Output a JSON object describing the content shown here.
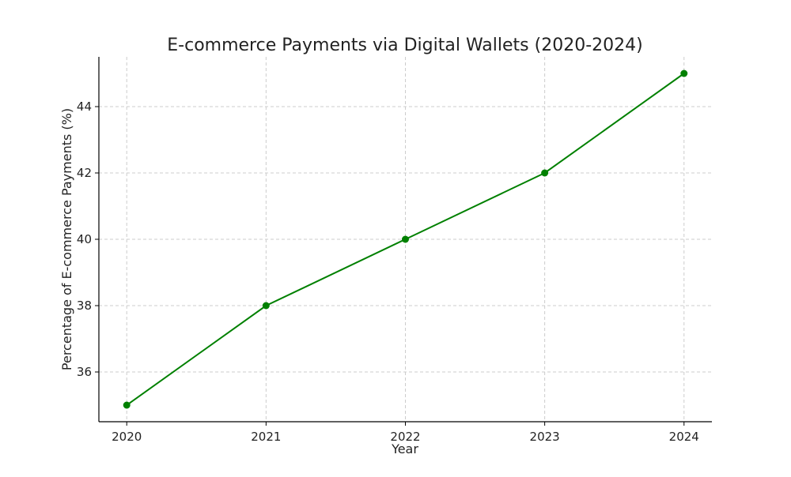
{
  "chart_data": {
    "type": "line",
    "title": "E-commerce Payments via Digital Wallets (2020-2024)",
    "xlabel": "Year",
    "ylabel": "Percentage of E-commerce Payments (%)",
    "x": [
      2020,
      2021,
      2022,
      2023,
      2024
    ],
    "xticks": [
      "2020",
      "2021",
      "2022",
      "2023",
      "2024"
    ],
    "yticks": [
      "36",
      "38",
      "40",
      "42",
      "44"
    ],
    "ytick_values": [
      36,
      38,
      40,
      42,
      44
    ],
    "series": [
      {
        "values": [
          35,
          38,
          40,
          42,
          45
        ],
        "color": "#008000",
        "marker": "circle"
      }
    ],
    "xlim": [
      2019.8,
      2024.2
    ],
    "ylim": [
      34.5,
      45.5
    ],
    "grid": true,
    "grid_style": "dashed"
  }
}
